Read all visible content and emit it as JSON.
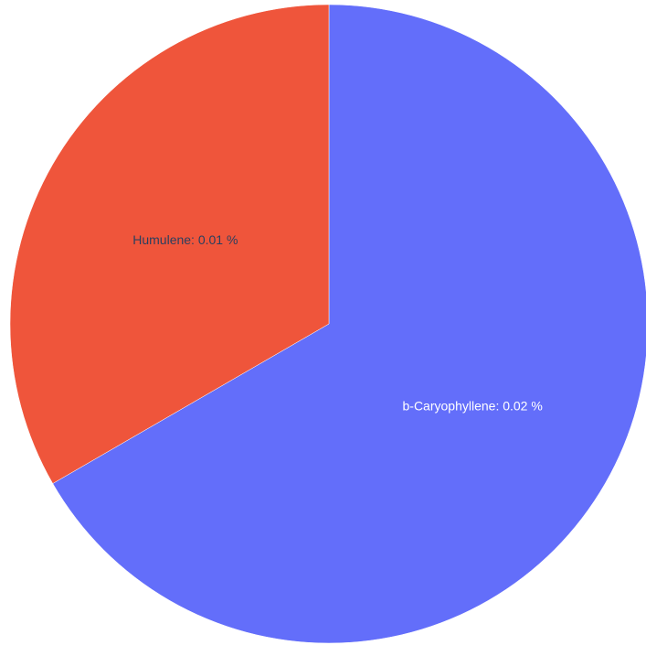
{
  "chart_data": {
    "type": "pie",
    "title": "",
    "slices": [
      {
        "label": "b-Caryophyllene",
        "value": 0.02,
        "display": "b-Caryophyllene: 0.02 %",
        "color": "#636efa",
        "label_color": "#ffffff"
      },
      {
        "label": "Humulene",
        "value": 0.01,
        "display": "Humulene: 0.01 %",
        "color": "#ef553b",
        "label_color": "#2a3f5f"
      }
    ],
    "start_angle_deg": 0,
    "direction": "clockwise",
    "legend": "none"
  }
}
